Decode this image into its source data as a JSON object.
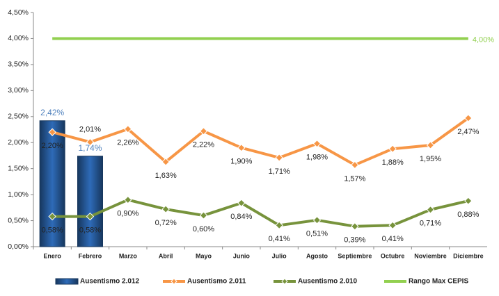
{
  "chart_data": {
    "type": "bar-line",
    "categories": [
      "Enero",
      "Febrero",
      "Marzo",
      "Abril",
      "Mayo",
      "Junio",
      "Julio",
      "Agosto",
      "Septiembre",
      "Octubre",
      "Noviembre",
      "Diciembre"
    ],
    "ylim": [
      0,
      4.5
    ],
    "yticks": [
      {
        "value": 0,
        "label": "0,00%"
      },
      {
        "value": 0.5,
        "label": "0,50%"
      },
      {
        "value": 1,
        "label": "1,00%"
      },
      {
        "value": 1.5,
        "label": "1,50%"
      },
      {
        "value": 2,
        "label": "2,00%"
      },
      {
        "value": 2.5,
        "label": "2,50%"
      },
      {
        "value": 3,
        "label": "3,00%"
      },
      {
        "value": 3.5,
        "label": "3,50%"
      },
      {
        "value": 4,
        "label": "4,00%"
      },
      {
        "value": 4.5,
        "label": "4,50%"
      }
    ],
    "series": [
      {
        "name": "Ausentismo 2.012",
        "type": "bar",
        "color": "#1f4e8c",
        "values": [
          2.42,
          1.74,
          null,
          null,
          null,
          null,
          null,
          null,
          null,
          null,
          null,
          null
        ],
        "value_labels": [
          "2,42%",
          "1,74%",
          null,
          null,
          null,
          null,
          null,
          null,
          null,
          null,
          null,
          null
        ]
      },
      {
        "name": "Ausentismo 2.011",
        "type": "line",
        "color": "#f79646",
        "marker": "diamond",
        "values": [
          2.2,
          2.01,
          2.26,
          1.63,
          2.22,
          1.9,
          1.71,
          1.98,
          1.57,
          1.88,
          1.95,
          2.47
        ],
        "value_labels": [
          "2,20%",
          "2,01%",
          "2,26%",
          "1,63%",
          "2,22%",
          "1,90%",
          "1,71%",
          "1,98%",
          "1,57%",
          "1,88%",
          "1,95%",
          "2,47%"
        ]
      },
      {
        "name": "Ausentismo 2.010",
        "type": "line",
        "color": "#77933c",
        "marker": "diamond",
        "values": [
          0.58,
          0.58,
          0.9,
          0.72,
          0.6,
          0.84,
          0.41,
          0.51,
          0.39,
          0.41,
          0.71,
          0.88
        ],
        "value_labels": [
          "0,58%",
          "0,58%",
          "0,90%",
          "0,72%",
          "0,60%",
          "0,84%",
          "0,41%",
          "0,51%",
          "0,39%",
          "0,41%",
          "0,71%",
          "0,88%"
        ]
      },
      {
        "name": "Rango Max CEPIS",
        "type": "line",
        "color": "#92d050",
        "values": [
          4,
          4,
          4,
          4,
          4,
          4,
          4,
          4,
          4,
          4,
          4,
          4
        ],
        "value_labels": [
          null,
          null,
          null,
          null,
          null,
          null,
          null,
          null,
          null,
          null,
          null,
          "4,00%"
        ]
      }
    ],
    "legend": "bottom"
  }
}
